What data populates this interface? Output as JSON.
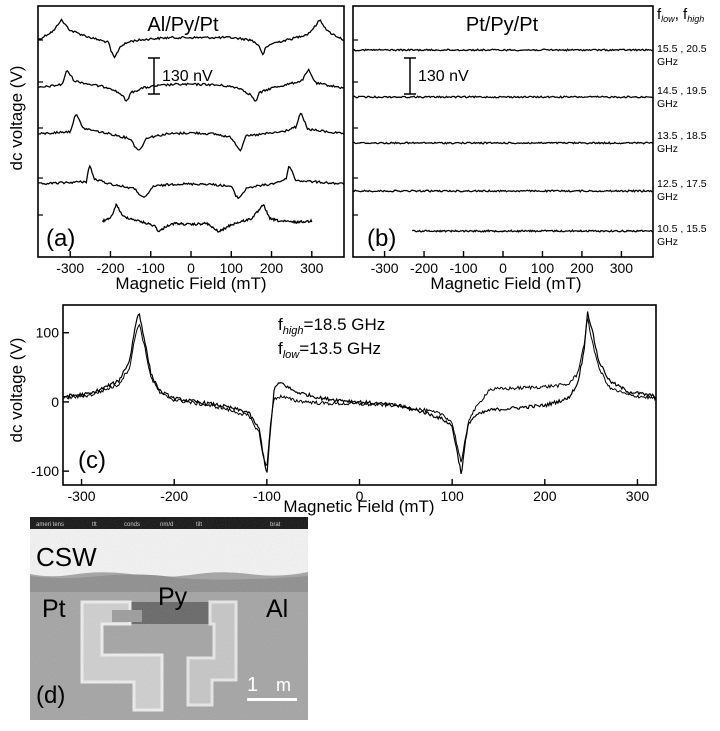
{
  "chart_data": [
    {
      "panel": "a",
      "type": "line",
      "title": "Al/Py/Pt",
      "panel_label": "(a)",
      "xlabel": "Magnetic Field (mT)",
      "ylabel": "dc voltage (V)",
      "xlim": [
        -380,
        380
      ],
      "x_ticks": [
        -300,
        -200,
        -100,
        0,
        100,
        200,
        300
      ],
      "x_tick_labels": [
        "-300",
        "-200",
        "-100",
        "0",
        "100",
        "200",
        "300"
      ],
      "scale_bar": "130 nV",
      "series": [
        {
          "x": [
            -380,
            -340,
            -323,
            -300,
            -250,
            -205,
            -198,
            -190,
            -175,
            -150,
            -100,
            -50,
            0,
            50,
            100,
            150,
            170,
            178,
            185,
            200,
            250,
            290,
            305,
            320,
            340,
            380
          ],
          "y": [
            5,
            13,
            22,
            13,
            7,
            3,
            -5,
            -10,
            0,
            4,
            6,
            7,
            7,
            7,
            7,
            5,
            0,
            -8,
            -2,
            2,
            6,
            10,
            15,
            22,
            12,
            5
          ]
        },
        {
          "x": [
            -380,
            -320,
            -308,
            -290,
            -250,
            -200,
            -170,
            -160,
            -150,
            -120,
            -80,
            -40,
            0,
            40,
            80,
            120,
            150,
            160,
            170,
            200,
            240,
            275,
            292,
            310,
            380
          ],
          "y": [
            0,
            3,
            15,
            6,
            3,
            0,
            -6,
            -12,
            -4,
            0,
            2,
            3,
            3,
            3,
            2,
            0,
            -6,
            -12,
            -4,
            0,
            3,
            6,
            15,
            4,
            0
          ]
        },
        {
          "x": [
            -380,
            -300,
            -285,
            -270,
            -230,
            -200,
            -150,
            -140,
            -128,
            -110,
            -60,
            0,
            60,
            100,
            115,
            123,
            135,
            180,
            230,
            262,
            272,
            290,
            380
          ],
          "y": [
            0,
            2,
            18,
            5,
            2,
            0,
            -4,
            -10,
            -14,
            -3,
            0,
            1,
            0,
            -3,
            -10,
            -14,
            -2,
            0,
            2,
            6,
            18,
            4,
            0
          ]
        },
        {
          "x": [
            -380,
            -260,
            -252,
            -240,
            -200,
            -140,
            -118,
            -110,
            -95,
            -40,
            0,
            40,
            100,
            112,
            118,
            140,
            200,
            236,
            244,
            260,
            380
          ],
          "y": [
            0,
            2,
            16,
            4,
            0,
            -4,
            -12,
            -10,
            -2,
            0,
            0,
            0,
            -2,
            -10,
            -12,
            -3,
            0,
            4,
            16,
            3,
            0
          ]
        },
        {
          "x": [
            -220,
            -200,
            -190,
            -185,
            -170,
            -130,
            -90,
            -80,
            -60,
            -40,
            0,
            40,
            55,
            70,
            100,
            150,
            172,
            180,
            195,
            220,
            260,
            300
          ],
          "y": [
            0,
            2,
            10,
            14,
            4,
            0,
            -4,
            -9,
            -4,
            -2,
            -3,
            -2,
            -6,
            -9,
            -3,
            2,
            10,
            14,
            2,
            0,
            -1,
            0
          ]
        }
      ]
    },
    {
      "panel": "b",
      "type": "line",
      "title": "Pt/Py/Pt",
      "panel_label": "(b)",
      "xlabel": "Magnetic Field (mT)",
      "xlim": [
        -380,
        380
      ],
      "x_ticks": [
        -300,
        -200,
        -100,
        0,
        100,
        200,
        300
      ],
      "x_tick_labels": [
        "-300",
        "-200",
        "-100",
        "0",
        "100",
        "200",
        "300"
      ],
      "scale_bar": "130 nV",
      "freq_header": {
        "main": "f",
        "low": "low",
        "sep": ", f",
        "high": "high"
      },
      "series": [
        {
          "x": [
            -380,
            380
          ],
          "y": [
            0,
            0
          ]
        },
        {
          "x": [
            -380,
            380
          ],
          "y": [
            0,
            0
          ]
        },
        {
          "x": [
            -380,
            380
          ],
          "y": [
            0,
            0
          ]
        },
        {
          "x": [
            -380,
            380
          ],
          "y": [
            0,
            0
          ]
        },
        {
          "x": [
            -230,
            380
          ],
          "y": [
            0,
            0
          ]
        }
      ],
      "frequency_labels": [
        {
          "pair": "15.5 , 20.5",
          "unit": "GHz"
        },
        {
          "pair": "14.5 , 19.5",
          "unit": "GHz"
        },
        {
          "pair": "13.5 , 18.5",
          "unit": "GHz"
        },
        {
          "pair": "12.5 , 17.5",
          "unit": "GHz"
        },
        {
          "pair": "10.5 , 15.5",
          "unit": "GHz"
        }
      ]
    },
    {
      "panel": "c",
      "type": "line",
      "panel_label": "(c)",
      "xlabel": "Magnetic Field (mT)",
      "ylabel": "dc voltage (V)",
      "xlim": [
        -320,
        320
      ],
      "ylim": [
        -120,
        140
      ],
      "x_ticks": [
        -300,
        -200,
        -100,
        0,
        100,
        200,
        300
      ],
      "x_tick_labels": [
        "-300",
        "-200",
        "-100",
        "0",
        "100",
        "200",
        "300"
      ],
      "y_ticks": [
        100,
        0,
        -100
      ],
      "y_tick_labels": [
        "100",
        "0",
        "-100"
      ],
      "annotation_high": {
        "main": "f",
        "sub": "high",
        "value": "=18.5 GHz"
      },
      "annotation_low": {
        "main": "f",
        "sub": "low",
        "value": "=13.5 GHz"
      },
      "series": [
        {
          "x": [
            -320,
            -290,
            -260,
            -248,
            -242,
            -238,
            -232,
            -225,
            -215,
            -200,
            -150,
            -120,
            -108,
            -104,
            -100,
            -96,
            -92,
            -85,
            -70,
            -40,
            0,
            40,
            70,
            90,
            100,
            105,
            110,
            114,
            118,
            125,
            140,
            200,
            225,
            235,
            242,
            246,
            250,
            258,
            270,
            290,
            320
          ],
          "y": [
            8,
            12,
            30,
            60,
            110,
            130,
            90,
            40,
            15,
            5,
            -5,
            -15,
            -40,
            -75,
            -105,
            -40,
            20,
            28,
            15,
            5,
            0,
            -5,
            -15,
            -25,
            -35,
            -70,
            -105,
            -60,
            -30,
            -20,
            -12,
            -5,
            5,
            25,
            70,
            130,
            110,
            60,
            30,
            15,
            8
          ]
        },
        {
          "x": [
            -320,
            -290,
            -260,
            -248,
            -242,
            -238,
            -232,
            -225,
            -215,
            -200,
            -150,
            -120,
            -108,
            -104,
            -100,
            -96,
            -92,
            -85,
            -70,
            -40,
            0,
            40,
            70,
            90,
            100,
            105,
            110,
            114,
            118,
            125,
            140,
            200,
            225,
            235,
            242,
            246,
            250,
            258,
            270,
            290,
            320
          ],
          "y": [
            5,
            10,
            25,
            50,
            95,
            115,
            80,
            35,
            12,
            3,
            -8,
            -20,
            -45,
            -80,
            -95,
            -30,
            5,
            8,
            2,
            -2,
            -3,
            -5,
            -12,
            -18,
            -30,
            -60,
            -90,
            -55,
            -25,
            -10,
            18,
            22,
            25,
            40,
            80,
            120,
            95,
            50,
            20,
            10,
            5
          ]
        }
      ]
    }
  ],
  "sem_image": {
    "panel_label": "(d)",
    "title": "CSW",
    "label_left": "Pt",
    "label_center": "Py",
    "label_right": "Al",
    "scale_value": "1",
    "scale_unit": "m",
    "status_bar": [
      "ameri tens",
      "tlt",
      "conds",
      "nm/d",
      "tilt",
      "brat"
    ]
  }
}
